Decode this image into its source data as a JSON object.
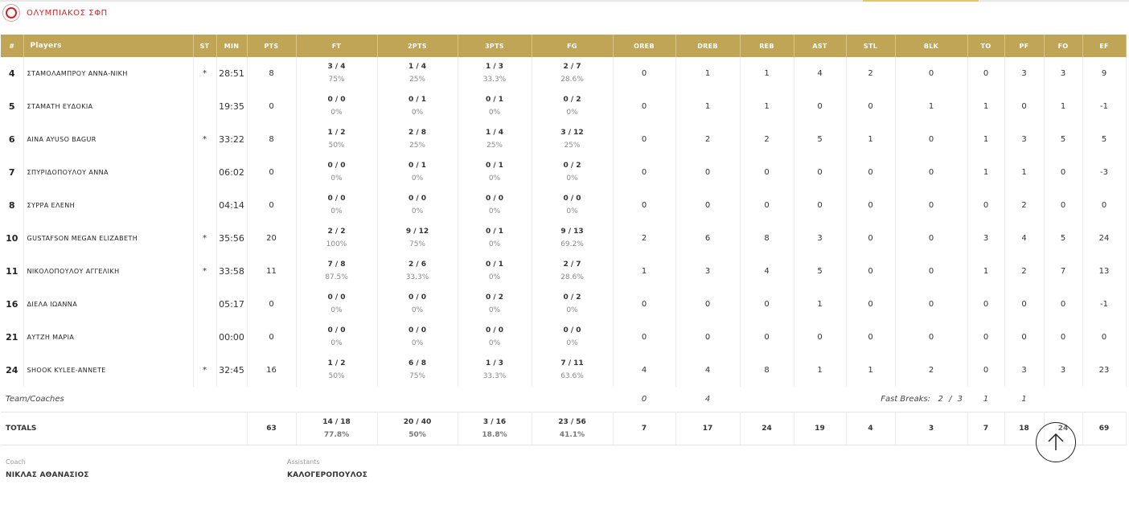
{
  "team": {
    "name": "ΟΛΥΜΠΙΑΚΟΣ ΣΦΠ"
  },
  "columns": {
    "num": "#",
    "players": "Players",
    "st": "ST",
    "min": "MIN",
    "pts": "PTS",
    "ft": "FT",
    "two_pts": "2PTS",
    "three_pts": "3PTS",
    "fg": "FG",
    "oreb": "OREB",
    "dreb": "DREB",
    "reb": "REB",
    "ast": "AST",
    "stl": "STL",
    "blk": "BLK",
    "to": "TO",
    "pf": "PF",
    "fo": "FO",
    "ef": "EF"
  },
  "players": [
    {
      "num": "4",
      "name": "ΣΤΑΜΟΛΑΜΠΡΟΥ ΑΝΝΑ-ΝΙΚΗ",
      "st": "*",
      "min": "28:51",
      "pts": "8",
      "ft": {
        "made": "3 / 4",
        "pct": "75%"
      },
      "two": {
        "made": "1 / 4",
        "pct": "25%"
      },
      "three": {
        "made": "1 / 3",
        "pct": "33.3%"
      },
      "fg": {
        "made": "2 / 7",
        "pct": "28.6%"
      },
      "oreb": "0",
      "dreb": "1",
      "reb": "1",
      "ast": "4",
      "stl": "2",
      "blk": "0",
      "to": "0",
      "pf": "3",
      "fo": "3",
      "ef": "9"
    },
    {
      "num": "5",
      "name": "ΣΤΑΜΑΤΗ ΕΥΔΟΚΙΑ",
      "st": "",
      "min": "19:35",
      "pts": "0",
      "ft": {
        "made": "0 / 0",
        "pct": "0%"
      },
      "two": {
        "made": "0 / 1",
        "pct": "0%"
      },
      "three": {
        "made": "0 / 1",
        "pct": "0%"
      },
      "fg": {
        "made": "0 / 2",
        "pct": "0%"
      },
      "oreb": "0",
      "dreb": "1",
      "reb": "1",
      "ast": "0",
      "stl": "0",
      "blk": "1",
      "to": "1",
      "pf": "0",
      "fo": "1",
      "ef": "-1"
    },
    {
      "num": "6",
      "name": "AINA AYUSO BAGUR",
      "st": "*",
      "min": "33:22",
      "pts": "8",
      "ft": {
        "made": "1 / 2",
        "pct": "50%"
      },
      "two": {
        "made": "2 / 8",
        "pct": "25%"
      },
      "three": {
        "made": "1 / 4",
        "pct": "25%"
      },
      "fg": {
        "made": "3 / 12",
        "pct": "25%"
      },
      "oreb": "0",
      "dreb": "2",
      "reb": "2",
      "ast": "5",
      "stl": "1",
      "blk": "0",
      "to": "1",
      "pf": "3",
      "fo": "5",
      "ef": "5"
    },
    {
      "num": "7",
      "name": "ΣΠΥΡΙΔΟΠΟΥΛΟΥ ΑΝΝΑ",
      "st": "",
      "min": "06:02",
      "pts": "0",
      "ft": {
        "made": "0 / 0",
        "pct": "0%"
      },
      "two": {
        "made": "0 / 1",
        "pct": "0%"
      },
      "three": {
        "made": "0 / 1",
        "pct": "0%"
      },
      "fg": {
        "made": "0 / 2",
        "pct": "0%"
      },
      "oreb": "0",
      "dreb": "0",
      "reb": "0",
      "ast": "0",
      "stl": "0",
      "blk": "0",
      "to": "1",
      "pf": "1",
      "fo": "0",
      "ef": "-3"
    },
    {
      "num": "8",
      "name": "ΣΥΡΡΑ ΕΛΕΝΗ",
      "st": "",
      "min": "04:14",
      "pts": "0",
      "ft": {
        "made": "0 / 0",
        "pct": "0%"
      },
      "two": {
        "made": "0 / 0",
        "pct": "0%"
      },
      "three": {
        "made": "0 / 0",
        "pct": "0%"
      },
      "fg": {
        "made": "0 / 0",
        "pct": "0%"
      },
      "oreb": "0",
      "dreb": "0",
      "reb": "0",
      "ast": "0",
      "stl": "0",
      "blk": "0",
      "to": "0",
      "pf": "2",
      "fo": "0",
      "ef": "0"
    },
    {
      "num": "10",
      "name": "GUSTAFSON MEGAN ELIZABETH",
      "st": "*",
      "min": "35:56",
      "pts": "20",
      "ft": {
        "made": "2 / 2",
        "pct": "100%"
      },
      "two": {
        "made": "9 / 12",
        "pct": "75%"
      },
      "three": {
        "made": "0 / 1",
        "pct": "0%"
      },
      "fg": {
        "made": "9 / 13",
        "pct": "69.2%"
      },
      "oreb": "2",
      "dreb": "6",
      "reb": "8",
      "ast": "3",
      "stl": "0",
      "blk": "0",
      "to": "3",
      "pf": "4",
      "fo": "5",
      "ef": "24"
    },
    {
      "num": "11",
      "name": "ΝΙΚΟΛΟΠΟΥΛΟΥ ΑΓΓΕΛΙΚΗ",
      "st": "*",
      "min": "33:58",
      "pts": "11",
      "ft": {
        "made": "7 / 8",
        "pct": "87.5%"
      },
      "two": {
        "made": "2 / 6",
        "pct": "33.3%"
      },
      "three": {
        "made": "0 / 1",
        "pct": "0%"
      },
      "fg": {
        "made": "2 / 7",
        "pct": "28.6%"
      },
      "oreb": "1",
      "dreb": "3",
      "reb": "4",
      "ast": "5",
      "stl": "0",
      "blk": "0",
      "to": "1",
      "pf": "2",
      "fo": "7",
      "ef": "13"
    },
    {
      "num": "16",
      "name": "ΔΙΕΛΑ ΙΩΑΝΝΑ",
      "st": "",
      "min": "05:17",
      "pts": "0",
      "ft": {
        "made": "0 / 0",
        "pct": "0%"
      },
      "two": {
        "made": "0 / 0",
        "pct": "0%"
      },
      "three": {
        "made": "0 / 2",
        "pct": "0%"
      },
      "fg": {
        "made": "0 / 2",
        "pct": "0%"
      },
      "oreb": "0",
      "dreb": "0",
      "reb": "0",
      "ast": "1",
      "stl": "0",
      "blk": "0",
      "to": "0",
      "pf": "0",
      "fo": "0",
      "ef": "-1"
    },
    {
      "num": "21",
      "name": "ΑΥΤΖΗ ΜΑΡΙΑ",
      "st": "",
      "min": "00:00",
      "pts": "0",
      "ft": {
        "made": "0 / 0",
        "pct": "0%"
      },
      "two": {
        "made": "0 / 0",
        "pct": "0%"
      },
      "three": {
        "made": "0 / 0",
        "pct": "0%"
      },
      "fg": {
        "made": "0 / 0",
        "pct": "0%"
      },
      "oreb": "0",
      "dreb": "0",
      "reb": "0",
      "ast": "0",
      "stl": "0",
      "blk": "0",
      "to": "0",
      "pf": "0",
      "fo": "0",
      "ef": "0"
    },
    {
      "num": "24",
      "name": "SHOOK KYLEE-ANNETE",
      "st": "*",
      "min": "32:45",
      "pts": "16",
      "ft": {
        "made": "1 / 2",
        "pct": "50%"
      },
      "two": {
        "made": "6 / 8",
        "pct": "75%"
      },
      "three": {
        "made": "1 / 3",
        "pct": "33.3%"
      },
      "fg": {
        "made": "7 / 11",
        "pct": "63.6%"
      },
      "oreb": "4",
      "dreb": "4",
      "reb": "8",
      "ast": "1",
      "stl": "1",
      "blk": "2",
      "to": "0",
      "pf": "3",
      "fo": "3",
      "ef": "23"
    }
  ],
  "team_row": {
    "label": "Team/Coaches",
    "oreb": "0",
    "dreb": "4",
    "fast_breaks_label": "Fast Breaks:",
    "fast_breaks_value": "2 / 3",
    "to": "1",
    "pf": "1"
  },
  "totals": {
    "label": "TOTALS",
    "pts": "63",
    "ft": {
      "made": "14 / 18",
      "pct": "77.8%"
    },
    "two": {
      "made": "20 / 40",
      "pct": "50%"
    },
    "three": {
      "made": "3 / 16",
      "pct": "18.8%"
    },
    "fg": {
      "made": "23 / 56",
      "pct": "41.1%"
    },
    "oreb": "7",
    "dreb": "17",
    "reb": "24",
    "ast": "19",
    "stl": "4",
    "blk": "3",
    "to": "7",
    "pf": "18",
    "fo": "24",
    "ef": "69"
  },
  "staff": {
    "coach_label": "Coach",
    "coach_name": "ΝΙΚΛΑΣ ΑΘΑΝΑΣΙΟΣ",
    "assistants_label": "Assistants",
    "assistants_name": "ΚΑΛΟΓΕΡΟΠΟΥΛΟΣ"
  },
  "icons": {
    "logo": "team-logo-icon",
    "scroll": "arrow-up-icon"
  },
  "colors": {
    "header_gold": "#bfa555",
    "brand_red": "#d32222"
  }
}
